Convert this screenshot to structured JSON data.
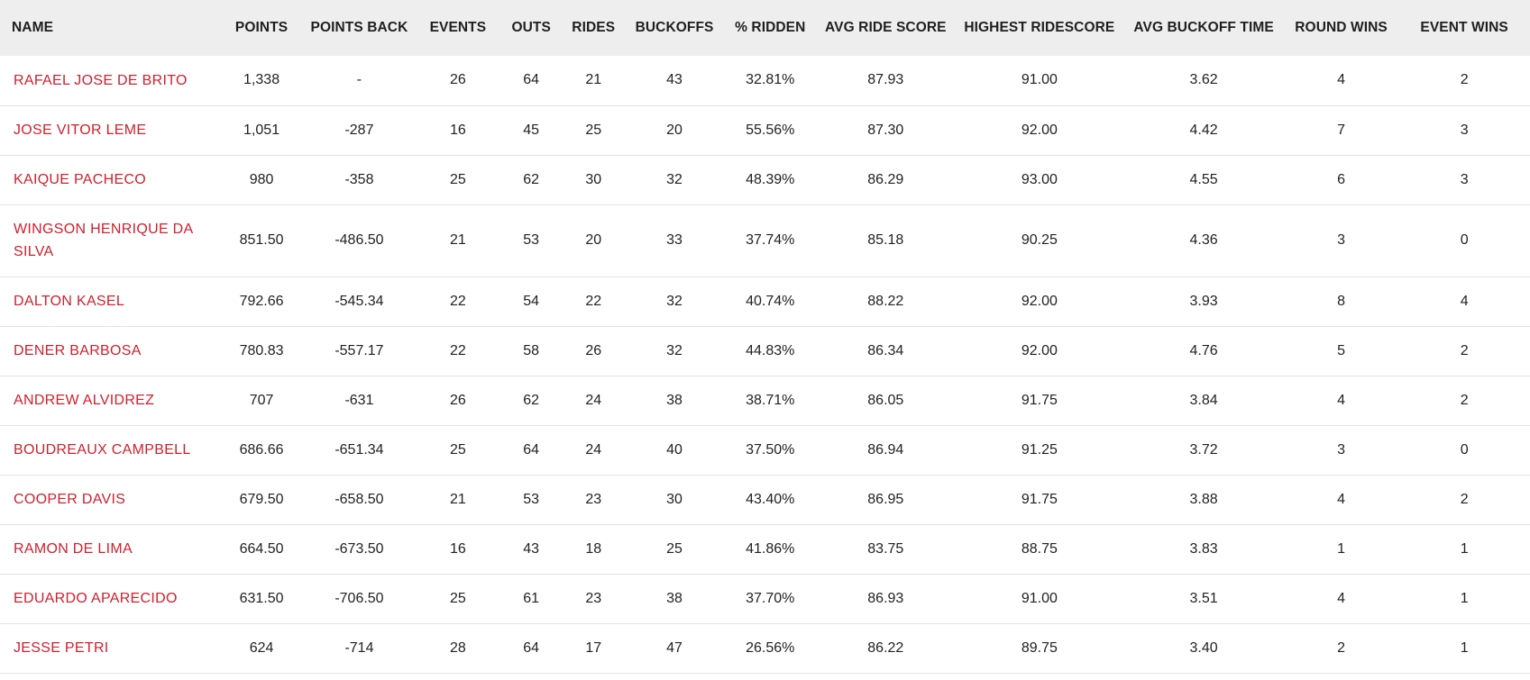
{
  "colors": {
    "header_bg": "#eeeeee",
    "name_link": "#d0202e",
    "text": "#222222",
    "row_border": "#e3e3e3"
  },
  "table": {
    "headers": [
      "NAME",
      "POINTS",
      "POINTS BACK",
      "EVENTS",
      "OUTS",
      "RIDES",
      "BUCKOFFS",
      "% RIDDEN",
      "AVG RIDE SCORE",
      "HIGHEST RIDESCORE",
      "AVG BUCKOFF TIME",
      "ROUND WINS",
      "EVENT WINS"
    ],
    "rows": [
      [
        "RAFAEL JOSE DE BRITO",
        "1,338",
        "-",
        "26",
        "64",
        "21",
        "43",
        "32.81%",
        "87.93",
        "91.00",
        "3.62",
        "4",
        "2"
      ],
      [
        "JOSE VITOR LEME",
        "1,051",
        "-287",
        "16",
        "45",
        "25",
        "20",
        "55.56%",
        "87.30",
        "92.00",
        "4.42",
        "7",
        "3"
      ],
      [
        "KAIQUE PACHECO",
        "980",
        "-358",
        "25",
        "62",
        "30",
        "32",
        "48.39%",
        "86.29",
        "93.00",
        "4.55",
        "6",
        "3"
      ],
      [
        "WINGSON HENRIQUE DA SILVA",
        "851.50",
        "-486.50",
        "21",
        "53",
        "20",
        "33",
        "37.74%",
        "85.18",
        "90.25",
        "4.36",
        "3",
        "0"
      ],
      [
        "DALTON KASEL",
        "792.66",
        "-545.34",
        "22",
        "54",
        "22",
        "32",
        "40.74%",
        "88.22",
        "92.00",
        "3.93",
        "8",
        "4"
      ],
      [
        "DENER BARBOSA",
        "780.83",
        "-557.17",
        "22",
        "58",
        "26",
        "32",
        "44.83%",
        "86.34",
        "92.00",
        "4.76",
        "5",
        "2"
      ],
      [
        "ANDREW ALVIDREZ",
        "707",
        "-631",
        "26",
        "62",
        "24",
        "38",
        "38.71%",
        "86.05",
        "91.75",
        "3.84",
        "4",
        "2"
      ],
      [
        "BOUDREAUX CAMPBELL",
        "686.66",
        "-651.34",
        "25",
        "64",
        "24",
        "40",
        "37.50%",
        "86.94",
        "91.25",
        "3.72",
        "3",
        "0"
      ],
      [
        "COOPER DAVIS",
        "679.50",
        "-658.50",
        "21",
        "53",
        "23",
        "30",
        "43.40%",
        "86.95",
        "91.75",
        "3.88",
        "4",
        "2"
      ],
      [
        "RAMON DE LIMA",
        "664.50",
        "-673.50",
        "16",
        "43",
        "18",
        "25",
        "41.86%",
        "83.75",
        "88.75",
        "3.83",
        "1",
        "1"
      ],
      [
        "EDUARDO APARECIDO",
        "631.50",
        "-706.50",
        "25",
        "61",
        "23",
        "38",
        "37.70%",
        "86.93",
        "91.00",
        "3.51",
        "4",
        "1"
      ],
      [
        "JESSE PETRI",
        "624",
        "-714",
        "28",
        "64",
        "17",
        "47",
        "26.56%",
        "86.22",
        "89.75",
        "3.40",
        "2",
        "1"
      ]
    ]
  }
}
